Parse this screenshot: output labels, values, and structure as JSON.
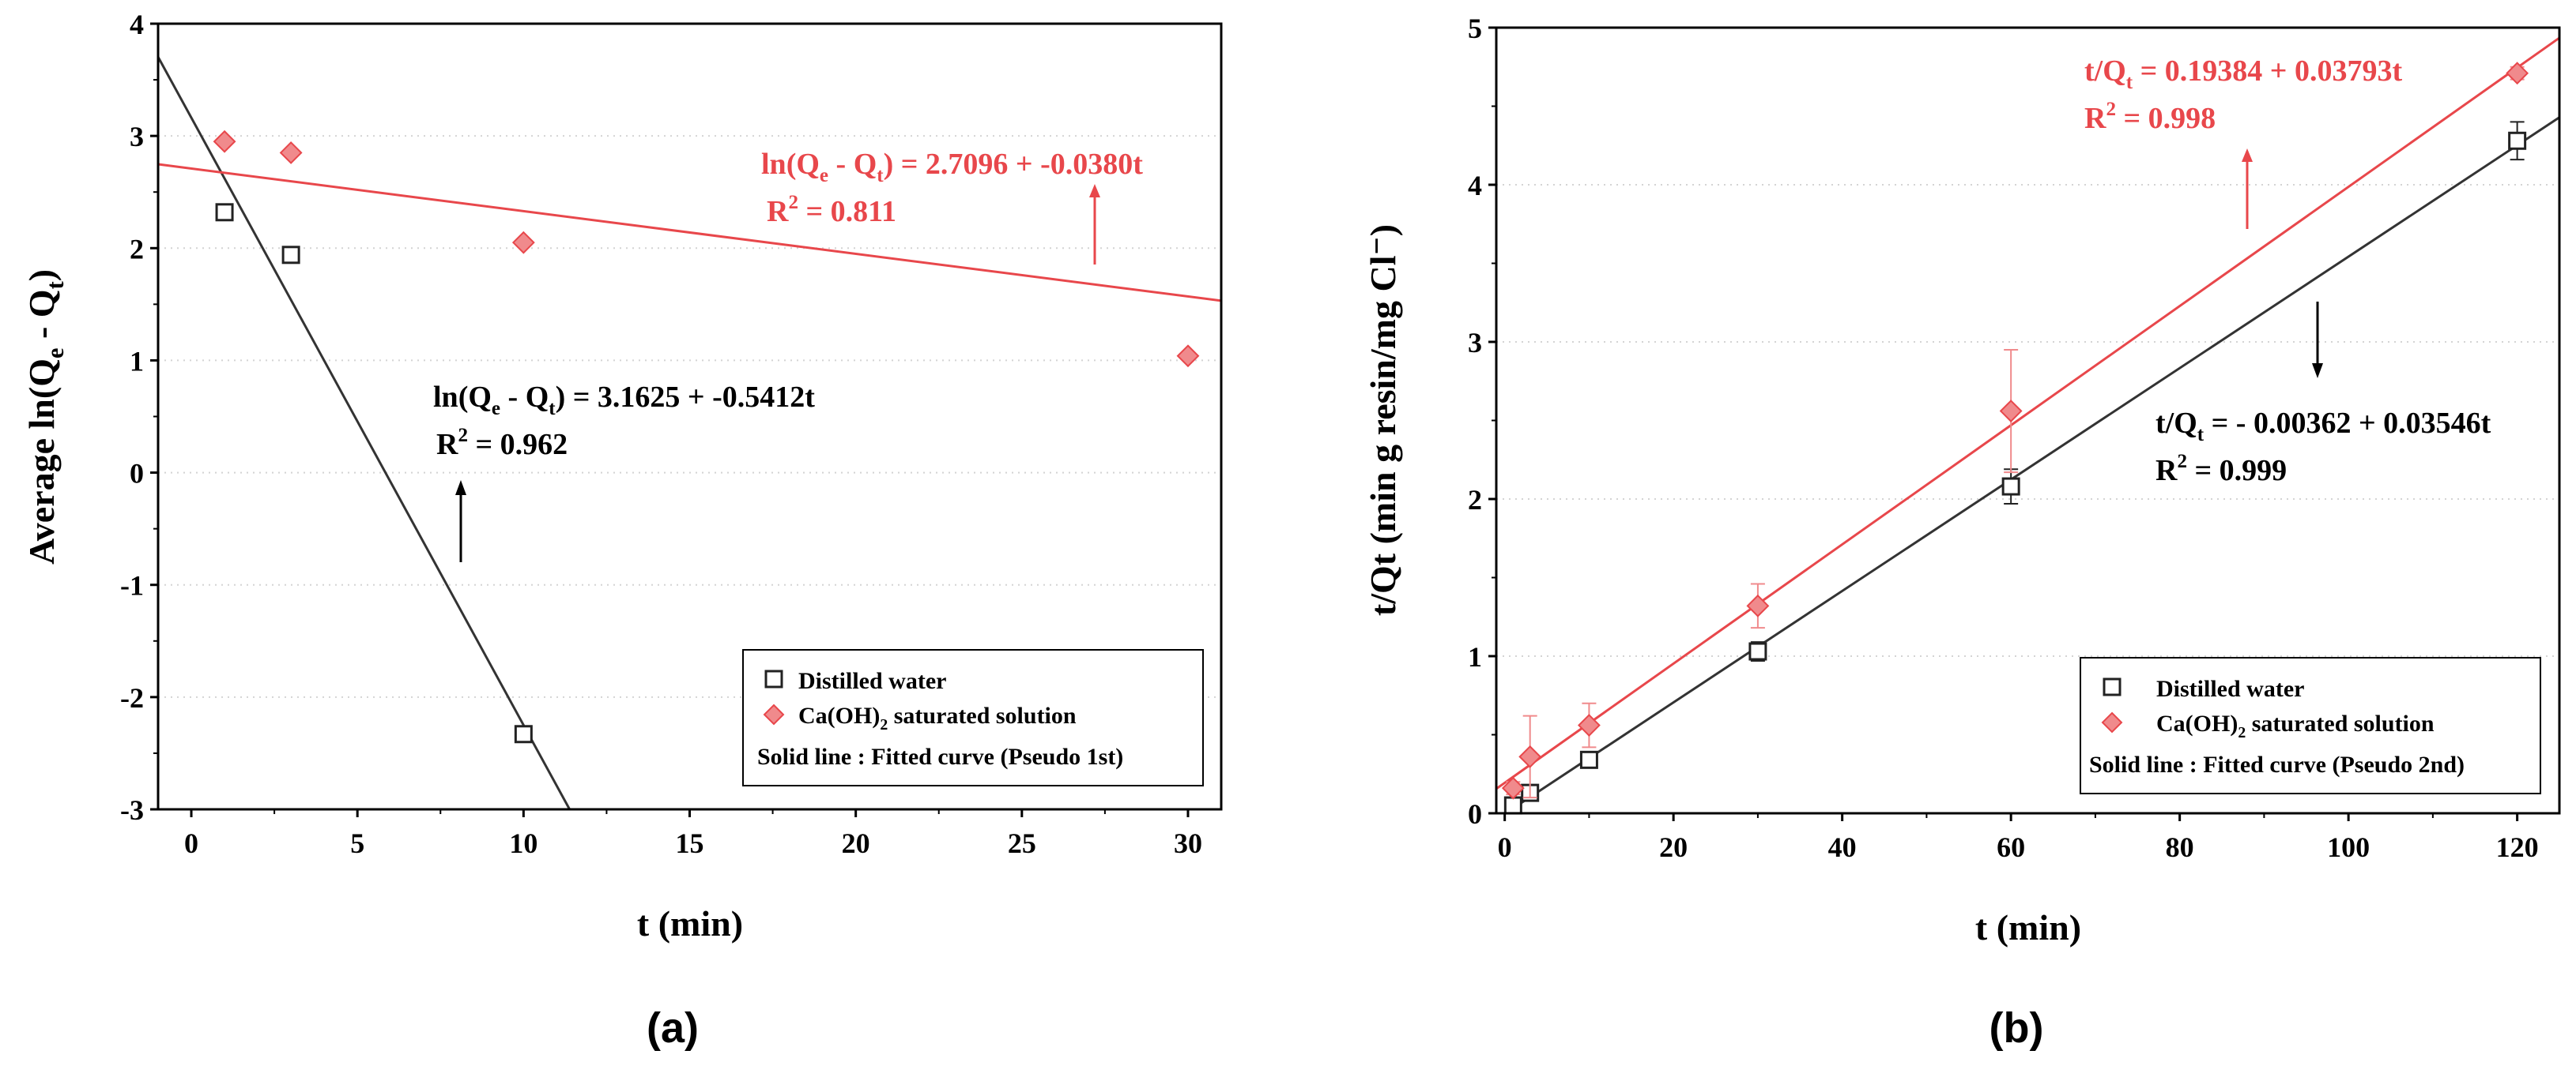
{
  "chart_data": [
    {
      "panel": "(a)",
      "type": "scatter",
      "title": "",
      "xlabel": "t (min)",
      "ylabel": "Average ln(Qe - Qt)",
      "xlim": [
        -1,
        31
      ],
      "ylim": [
        -3,
        4
      ],
      "xticks": [
        0,
        5,
        10,
        15,
        20,
        25,
        30
      ],
      "yticks": [
        -3,
        -2,
        -1,
        0,
        1,
        2,
        3,
        4
      ],
      "grid": "horizontal dotted",
      "series": [
        {
          "name": "Distilled water",
          "color": "#222222",
          "marker": "square",
          "points": [
            {
              "x": 1,
              "y": 2.32
            },
            {
              "x": 3,
              "y": 1.94
            },
            {
              "x": 10,
              "y": -2.33
            }
          ],
          "fit": {
            "intercept": 3.1625,
            "slope": -0.5412
          },
          "equation": {
            "lhs": "ln(Q",
            "sub1": "e",
            "mid": " - Q",
            "sub2": "t",
            "rhs": ") = 3.1625 + -0.5412t",
            "r2_label": "R",
            "r2_sup": "2",
            "r2_value": " = 0.962"
          }
        },
        {
          "name": "Ca(OH)2 saturated solution",
          "color": "#e8474b",
          "marker": "diamond",
          "points": [
            {
              "x": 1,
              "y": 2.95
            },
            {
              "x": 3,
              "y": 2.85
            },
            {
              "x": 10,
              "y": 2.05
            },
            {
              "x": 30,
              "y": 1.04
            }
          ],
          "fit": {
            "intercept": 2.7096,
            "slope": -0.038
          },
          "equation": {
            "lhs": "ln(Q",
            "sub1": "e",
            "mid": " - Q",
            "sub2": "t",
            "rhs": ") = 2.7096 + -0.0380t",
            "r2_label": "R",
            "r2_sup": "2",
            "r2_value": " = 0.811"
          }
        }
      ],
      "legend": {
        "position": "bottom-right",
        "entry1": "Distilled water",
        "entry2_pre": "Ca(OH)",
        "entry2_sub": "2",
        "entry2_post": " saturated solution",
        "note": "Solid line : Fitted curve (Pseudo 1st)"
      }
    },
    {
      "panel": "(b)",
      "type": "scatter",
      "title": "",
      "xlabel": "t (min)",
      "ylabel": "t/Qt (min g resin/mg Cl⁻)",
      "xlim": [
        -1,
        125
      ],
      "ylim": [
        0,
        5
      ],
      "xticks": [
        0,
        20,
        40,
        60,
        80,
        100,
        120
      ],
      "yticks": [
        0,
        1,
        2,
        3,
        4,
        5
      ],
      "grid": "horizontal dotted",
      "series": [
        {
          "name": "Distilled water",
          "color": "#222222",
          "marker": "square",
          "points": [
            {
              "x": 1,
              "y": 0.05,
              "err": 0.02
            },
            {
              "x": 3,
              "y": 0.13,
              "err": 0.03
            },
            {
              "x": 10,
              "y": 0.34,
              "err": 0.03
            },
            {
              "x": 30,
              "y": 1.03,
              "err": 0.06
            },
            {
              "x": 60,
              "y": 2.08,
              "err": 0.11
            },
            {
              "x": 120,
              "y": 4.28,
              "err": 0.12
            }
          ],
          "fit": {
            "intercept": -0.00362,
            "slope": 0.03546
          },
          "equation": {
            "lhs": "t/Q",
            "sub": "t",
            "rhs": " = - 0.00362 + 0.03546t",
            "r2_label": "R",
            "r2_sup": "2",
            "r2_value": " = 0.999"
          }
        },
        {
          "name": "Ca(OH)2 saturated solution",
          "color": "#e8474b",
          "marker": "diamond",
          "points": [
            {
              "x": 1,
              "y": 0.16,
              "err": 0.04
            },
            {
              "x": 3,
              "y": 0.36,
              "err": 0.26
            },
            {
              "x": 10,
              "y": 0.56,
              "err": 0.14
            },
            {
              "x": 30,
              "y": 1.32,
              "err": 0.14
            },
            {
              "x": 60,
              "y": 2.56,
              "err": 0.39
            },
            {
              "x": 120,
              "y": 4.71,
              "err": 0.04
            }
          ],
          "fit": {
            "intercept": 0.19384,
            "slope": 0.03793
          },
          "equation": {
            "lhs": "t/Q",
            "sub": "t",
            "rhs": " = 0.19384 + 0.03793t",
            "r2_label": "R",
            "r2_sup": "2",
            "r2_value": " = 0.998"
          }
        }
      ],
      "legend": {
        "position": "bottom-right",
        "entry1": "Distilled water",
        "entry2_pre": "Ca(OH)",
        "entry2_sub": "2",
        "entry2_post": " saturated solution",
        "note": "Solid line : Fitted curve (Pseudo 2nd)"
      }
    }
  ]
}
